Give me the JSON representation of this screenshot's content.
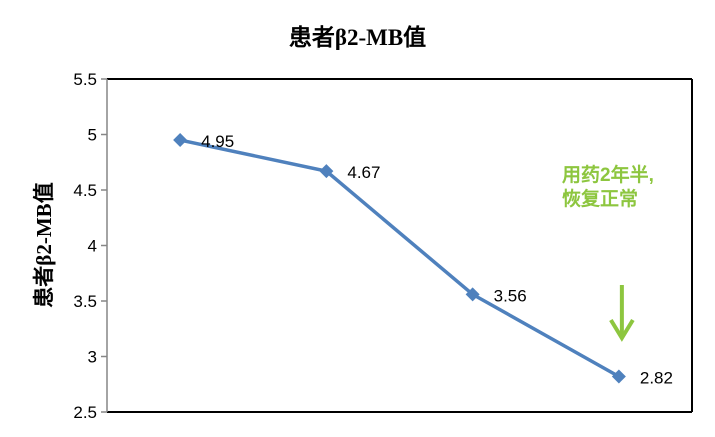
{
  "chart_data": {
    "type": "line",
    "title": "患者β2-MB值",
    "ylabel": "患者β2-MB值",
    "xlabel": "",
    "categories": [
      "",
      "",
      "",
      ""
    ],
    "series": [
      {
        "values": [
          4.95,
          4.67,
          3.56,
          2.82
        ],
        "color": "#4f81bd"
      }
    ],
    "data_labels": [
      "4.95",
      "4.67",
      "3.56",
      "2.82"
    ],
    "ylim": [
      2.5,
      5.5
    ],
    "yticks": [
      2.5,
      3,
      3.5,
      4,
      4.5,
      5,
      5.5
    ],
    "ytick_labels": [
      "2.5",
      "3",
      "3.5",
      "4",
      "4.5",
      "5",
      "5.5"
    ],
    "grid": false,
    "legend": "none",
    "marker": "diamond",
    "annotation": {
      "line1": "用药2年半,",
      "line2": "恢复正常",
      "color": "#8dc63f",
      "points_to_index": 3,
      "arrow": "down"
    }
  }
}
